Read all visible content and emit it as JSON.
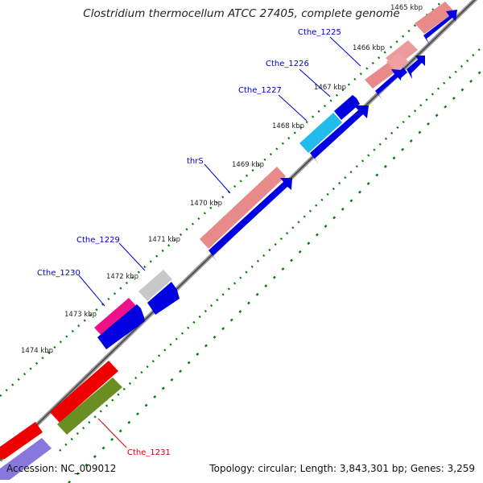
{
  "title": "Clostridium thermocellum ATCC 27405, complete genome",
  "accession_text": "Accession: NC_009012",
  "topology_text": "Topology: circular; Length: 3,843,301 bp; Genes: 3,259",
  "kbp_labels": [
    "1465 kbp",
    "1466 kbp",
    "1467 kbp",
    "1468 kbp",
    "1469 kbp",
    "1470 kbp",
    "1471 kbp",
    "1472 kbp",
    "1473 kbp",
    "1474 kbp"
  ],
  "gene_labels": [
    "Cthe_1225",
    "Cthe_1226",
    "Cthe_1227",
    "thrS",
    "Cthe_1229",
    "Cthe_1230",
    "Cthe_1231"
  ],
  "colors": {
    "backbone": "#8a8a8a",
    "gene_arrow": "#0000e0",
    "ruler": "#008000",
    "label_blue": "#0000cc",
    "label_red": "#cc0000",
    "pink": "#e88a8a",
    "cyan": "#22bbee",
    "grey": "#c8c8c8",
    "magenta": "#ee1188",
    "red": "#ee0000",
    "olive": "#6a8e22",
    "lavender": "#8877dd"
  }
}
